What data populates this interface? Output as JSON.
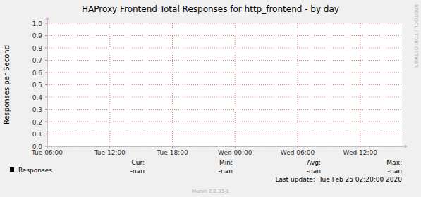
{
  "chart_data": {
    "type": "line",
    "title": "HAProxy Frontend Total Responses for http_frontend - by day",
    "y_label": "Responses per Second",
    "x": [],
    "series": [
      {
        "name": "Responses",
        "color": "#000000",
        "values": []
      }
    ],
    "stats": [
      {
        "label": "Cur:",
        "value": "-nan"
      },
      {
        "label": "Min:",
        "value": "-nan"
      },
      {
        "label": "Avg:",
        "value": "-nan"
      },
      {
        "label": "Max:",
        "value": "-nan"
      }
    ],
    "last_update": "Last update:  Tue Feb 25 02:20:00 2020",
    "footer": "Munin 2.0.33-1",
    "side_text": "RRDTOOL / TOBI OETIKER",
    "xlim": [
      6,
      40
    ],
    "xticks": [
      {
        "value": 6,
        "label": "Tue 06:00"
      },
      {
        "value": 12,
        "label": "Tue 12:00"
      },
      {
        "value": 18,
        "label": "Tue 18:00"
      },
      {
        "value": 24,
        "label": "Wed 00:00"
      },
      {
        "value": 30,
        "label": "Wed 06:00"
      },
      {
        "value": 36,
        "label": "Wed 12:00"
      }
    ],
    "ylim": [
      0,
      1
    ],
    "yticks": [
      {
        "value": 0,
        "label": "0.0"
      },
      0.1,
      0.2,
      0.3,
      0.4,
      0.5,
      0.6,
      0.7,
      0.8,
      0.9,
      {
        "value": 1,
        "label": "1.0"
      }
    ],
    "grid": true
  }
}
